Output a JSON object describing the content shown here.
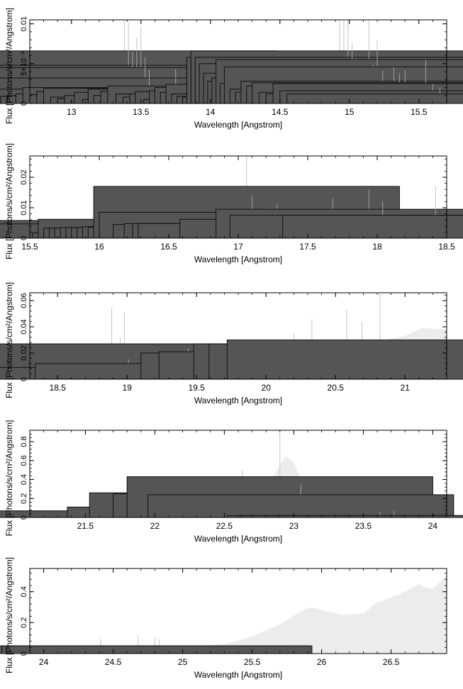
{
  "chart_data": [
    {
      "type": "bar",
      "xlabel": "Wavelength [Angstrom]",
      "ylabel": "Flux [Photons/s/cm²/Angstrom]",
      "xlim": [
        12.7,
        15.7
      ],
      "ylim": [
        0,
        0.0105
      ],
      "xticks": [
        13,
        13.5,
        14,
        14.5,
        15,
        15.5
      ],
      "xtick_labels": [
        "13",
        "13.5",
        "14",
        "14.5",
        "15",
        "15.5"
      ],
      "yticks": [
        0,
        0.005,
        0.01
      ],
      "ytick_labels": [
        "0",
        "5×10⁻³",
        "0.01"
      ],
      "model": {
        "x": [
          12.7,
          13.5,
          14.5,
          15.7
        ],
        "y": [
          0.0002,
          0.0002,
          0.0002,
          0.0002
        ]
      },
      "x": [
        12.74,
        12.78,
        12.82,
        12.86,
        12.92,
        13.0,
        13.06,
        13.14,
        13.2,
        13.34,
        13.38,
        13.41,
        13.44,
        13.47,
        13.5,
        13.53,
        13.56,
        13.59,
        13.64,
        13.7,
        13.75,
        13.8,
        13.85,
        13.9,
        13.95,
        14.0,
        14.05,
        14.12,
        14.18,
        14.22,
        14.26,
        14.31,
        14.36,
        14.42,
        14.47,
        14.52,
        14.56,
        14.62,
        14.66,
        14.7,
        14.74,
        14.78,
        14.82,
        14.86,
        14.9,
        14.93,
        14.96,
        14.99,
        15.02,
        15.05,
        15.08,
        15.11,
        15.14,
        15.17,
        15.2,
        15.24,
        15.28,
        15.32,
        15.36,
        15.4,
        15.45,
        15.5,
        15.55,
        15.6,
        15.65
      ],
      "y": [
        0.0006,
        0.0012,
        0.0004,
        0.0006,
        0.0003,
        0.0005,
        0.0002,
        0.0014,
        0.0005,
        0.0012,
        0.0066,
        0.0048,
        0.0042,
        0.0036,
        0.0045,
        0.0032,
        0.0018,
        0.0009,
        0.001,
        0.0012,
        0.002,
        0.0011,
        0.0015,
        0.0019,
        0.0008,
        0.0006,
        0.001,
        0.0014,
        0.0005,
        0.0018,
        0.001,
        0.0015,
        0.0022,
        0.0012,
        0.0008,
        0.0012,
        0.0015,
        0.0005,
        0.0016,
        0.002,
        0.0014,
        0.0024,
        0.0012,
        0.0009,
        0.0008,
        0.0058,
        0.0066,
        0.0058,
        0.005,
        0.0038,
        0.0028,
        0.0032,
        0.0055,
        0.0025,
        0.0046,
        0.0018,
        0.0014,
        0.0028,
        0.0022,
        0.0026,
        0.0014,
        0.0012,
        0.0025,
        0.0016,
        0.0012
      ]
    },
    {
      "type": "bar",
      "xlabel": "Wavelength [Angstrom]",
      "ylabel": "Flux [Photons/s/cm²/Angstrom]",
      "xlim": [
        15.5,
        18.5
      ],
      "ylim": [
        0,
        0.027
      ],
      "xticks": [
        15.5,
        16,
        16.5,
        17,
        17.5,
        18,
        18.5
      ],
      "xtick_labels": [
        "15.5",
        "16",
        "16.5",
        "17",
        "17.5",
        "18",
        "18.5"
      ],
      "yticks": [
        0,
        0.01,
        0.02
      ],
      "ytick_labels": [
        "0",
        "0.01",
        "0.02"
      ],
      "model": {
        "x": [
          15.5,
          16.0,
          16.5,
          17.0,
          17.5,
          17.8,
          17.95,
          18.05,
          18.2,
          18.5
        ],
        "y": [
          0.0015,
          0.0022,
          0.0032,
          0.0042,
          0.0055,
          0.008,
          0.0105,
          0.0075,
          0.006,
          0.0055
        ]
      },
      "x": [
        15.54,
        15.58,
        15.62,
        15.66,
        15.78,
        15.84,
        15.9,
        15.98,
        16.02,
        16.1,
        16.24,
        16.62,
        16.66,
        16.7,
        16.74,
        16.78,
        16.82,
        16.86,
        16.9,
        16.94,
        16.98,
        17.02,
        17.06,
        17.1,
        17.2,
        17.28,
        17.34,
        17.38,
        17.68,
        17.94,
        18.04,
        18.42
      ],
      "y": [
        0.0012,
        0.003,
        0.0012,
        0.0012,
        0.0012,
        0.0012,
        0.0012,
        0.0035,
        0.0058,
        0.0013,
        0.0047,
        0.0018,
        0.0062,
        0.0033,
        0.0033,
        0.0033,
        0.0035,
        0.0035,
        0.0035,
        0.0035,
        0.0038,
        0.0036,
        0.017,
        0.0085,
        0.0045,
        0.0048,
        0.0048,
        0.0048,
        0.0062,
        0.0095,
        0.0075,
        0.0075
      ]
    },
    {
      "type": "bar",
      "xlabel": "Wavelength [Angstrom]",
      "ylabel": "Flux [Photons/s/cm²/Angstrom]",
      "xlim": [
        18.3,
        21.3
      ],
      "ylim": [
        0,
        0.066
      ],
      "xticks": [
        18.5,
        19,
        19.5,
        20,
        20.5,
        21
      ],
      "xtick_labels": [
        "18.5",
        "19",
        "19.5",
        "20",
        "20.5",
        "21"
      ],
      "yticks": [
        0,
        0.02,
        0.04,
        0.06
      ],
      "ytick_labels": [
        "0",
        "0.02",
        "0.04",
        "0.06"
      ],
      "model": {
        "x": [
          18.3,
          18.8,
          19.2,
          19.6,
          20.0,
          20.4,
          20.8,
          21.0,
          21.12,
          21.3
        ],
        "y": [
          0.007,
          0.009,
          0.012,
          0.014,
          0.017,
          0.022,
          0.029,
          0.033,
          0.039,
          0.038
        ]
      },
      "x": [
        18.42,
        18.74,
        18.86,
        18.89,
        18.92,
        18.95,
        18.98,
        19.01,
        19.44,
        20.2,
        20.33,
        20.58,
        20.69,
        20.82
      ],
      "y": [
        0.007,
        0.008,
        0.009,
        0.026,
        0.009,
        0.017,
        0.027,
        0.009,
        0.012,
        0.02,
        0.021,
        0.027,
        0.027,
        0.03
      ]
    },
    {
      "type": "bar",
      "xlabel": "Wavelength [Angstrom]",
      "ylabel": "Flux [Photons/s/cm²/Angstrom]",
      "xlim": [
        21.1,
        24.1
      ],
      "ylim": [
        0,
        0.92
      ],
      "xticks": [
        21.5,
        22,
        22.5,
        23,
        23.5,
        24
      ],
      "xtick_labels": [
        "21.5",
        "22",
        "22.5",
        "23",
        "23.5",
        "24"
      ],
      "yticks": [
        0,
        0.2,
        0.4,
        0.6,
        0.8
      ],
      "ytick_labels": [
        "0",
        "0.2",
        "0.4",
        "0.6",
        "0.8"
      ],
      "model": {
        "x": [
          21.1,
          21.6,
          22.0,
          22.4,
          22.65,
          22.8,
          22.88,
          22.94,
          23.0,
          23.06,
          23.12,
          23.18,
          23.25,
          23.3,
          23.34,
          23.37,
          23.4,
          24.1
        ],
        "y": [
          0.03,
          0.04,
          0.06,
          0.09,
          0.14,
          0.28,
          0.5,
          0.65,
          0.58,
          0.38,
          0.18,
          0.07,
          0.03,
          0.08,
          0.18,
          0.06,
          0.02,
          0.02
        ]
      },
      "x": [
        21.59,
        21.98,
        22.47,
        22.63,
        22.8,
        22.9,
        23.05,
        23.62,
        23.72
      ],
      "y": [
        0.05,
        0.07,
        0.11,
        0.26,
        0.25,
        0.43,
        0.24,
        0.02,
        0.02
      ]
    },
    {
      "type": "bar",
      "xlabel": "Wavelength [Angstrom]",
      "ylabel": "Flux [Photons/s/cm²/Angstrom]",
      "xlim": [
        23.9,
        26.9
      ],
      "ylim": [
        0,
        0.55
      ],
      "xticks": [
        24,
        24.5,
        25,
        25.5,
        26,
        26.5
      ],
      "xtick_labels": [
        "24",
        "24.5",
        "25",
        "25.5",
        "26",
        "26.5"
      ],
      "yticks": [
        0,
        0.2,
        0.4
      ],
      "ytick_labels": [
        "0",
        "0.2",
        "0.4"
      ],
      "model": {
        "x": [
          23.9,
          24.4,
          24.9,
          25.3,
          25.5,
          25.7,
          25.85,
          25.92,
          26.05,
          26.15,
          26.3,
          26.4,
          26.55,
          26.7,
          26.73,
          26.8,
          26.9
        ],
        "y": [
          0.02,
          0.025,
          0.035,
          0.06,
          0.11,
          0.19,
          0.27,
          0.3,
          0.27,
          0.25,
          0.26,
          0.33,
          0.38,
          0.45,
          0.43,
          0.42,
          0.5
        ]
      },
      "x": [
        24.41,
        24.68,
        24.8,
        24.83
      ],
      "y": [
        0.04,
        0.05,
        0.05,
        0.05
      ]
    }
  ]
}
